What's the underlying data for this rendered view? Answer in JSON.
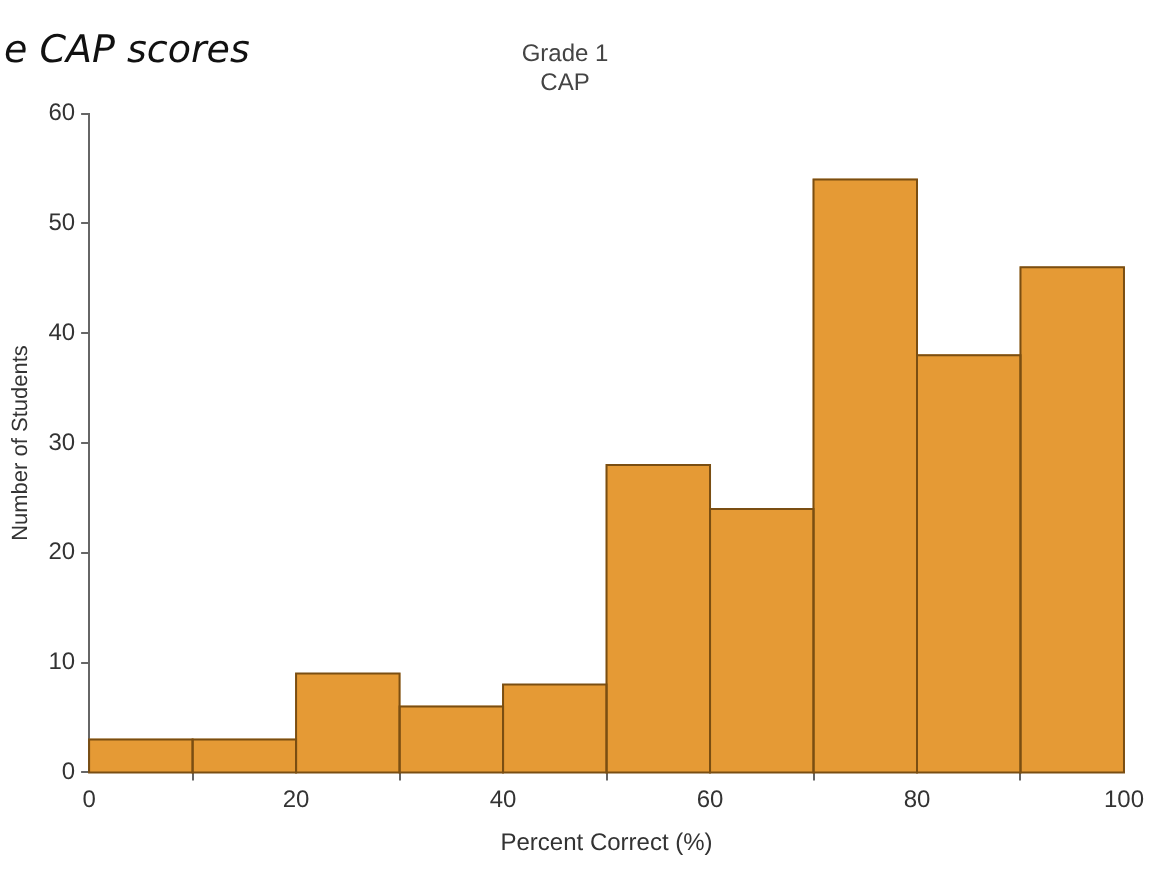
{
  "chart_data": {
    "type": "histogram",
    "title": "Grade 1",
    "subtitle": "CAP",
    "xlabel": "Percent Correct (%)",
    "ylabel": "Number of Students",
    "annotations": [
      "e CAP scores"
    ],
    "bins": [
      0,
      10,
      20,
      30,
      40,
      50,
      60,
      70,
      80,
      90,
      100
    ],
    "values": [
      3,
      3,
      9,
      6,
      8,
      28,
      24,
      54,
      38,
      46
    ],
    "color": "#e59a35",
    "xlim": [
      0,
      100
    ],
    "xticks": [
      0,
      20,
      40,
      60,
      80,
      100
    ],
    "ylim": [
      0,
      60
    ],
    "yticks": [
      0,
      10,
      20,
      30,
      40,
      50,
      60
    ],
    "grid": false,
    "legend": false
  }
}
